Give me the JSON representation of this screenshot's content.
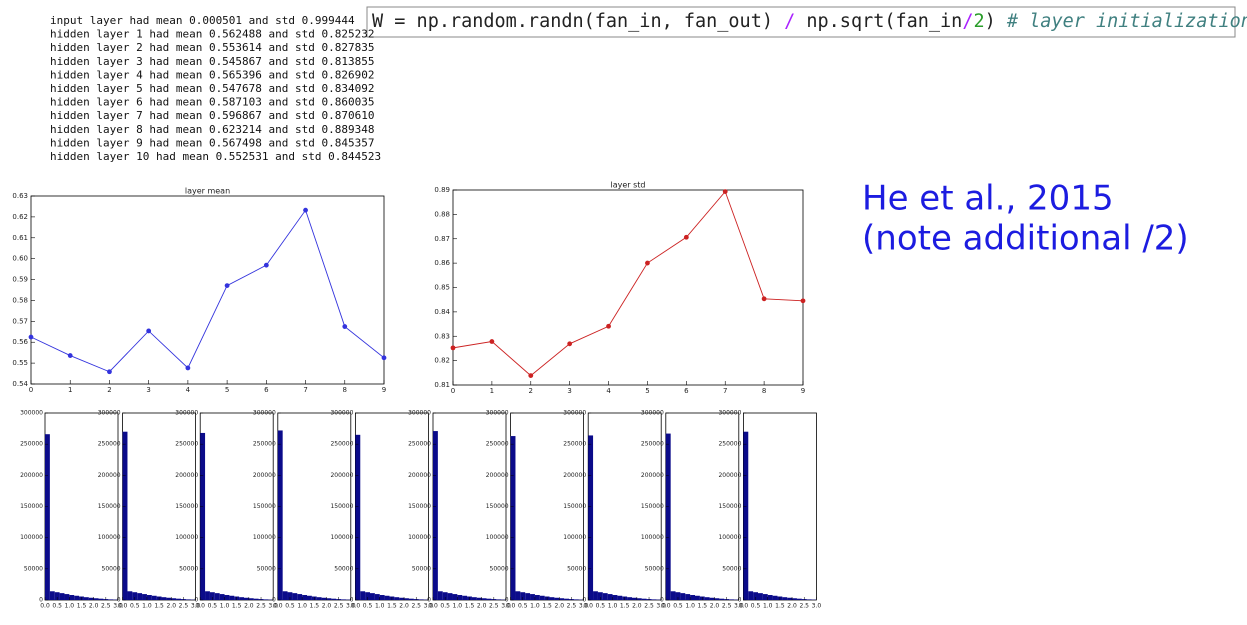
{
  "log_lines": [
    "input layer had mean 0.000501 and std 0.999444",
    "hidden layer 1 had mean 0.562488 and std 0.825232",
    "hidden layer 2 had mean 0.553614 and std 0.827835",
    "hidden layer 3 had mean 0.545867 and std 0.813855",
    "hidden layer 4 had mean 0.565396 and std 0.826902",
    "hidden layer 5 had mean 0.547678 and std 0.834092",
    "hidden layer 6 had mean 0.587103 and std 0.860035",
    "hidden layer 7 had mean 0.596867 and std 0.870610",
    "hidden layer 8 had mean 0.623214 and std 0.889348",
    "hidden layer 9 had mean 0.567498 and std 0.845357",
    "hidden layer 10 had mean 0.552531 and std 0.844523"
  ],
  "code_tokens": [
    {
      "text": "W = np.random.randn(fan_in, fan_out) ",
      "color": "#222222"
    },
    {
      "text": "/",
      "color": "#aa22ff"
    },
    {
      "text": " np.sqrt(fan_in",
      "color": "#222222"
    },
    {
      "text": "/",
      "color": "#aa22ff"
    },
    {
      "text": "2",
      "color": "#2a9d2a"
    },
    {
      "text": ") ",
      "color": "#222222"
    },
    {
      "text": "# layer initialization",
      "color": "#408080"
    }
  ],
  "annotation": [
    "He et al., 2015",
    "(note additional /2)"
  ],
  "chart_data": [
    {
      "type": "line",
      "title": "layer mean",
      "color": "#3333dd",
      "x": [
        0,
        1,
        2,
        3,
        4,
        5,
        6,
        7,
        8,
        9
      ],
      "values": [
        0.562488,
        0.553614,
        0.545867,
        0.565396,
        0.547678,
        0.587103,
        0.596867,
        0.623214,
        0.567498,
        0.552531
      ],
      "xlim": [
        0,
        9
      ],
      "xticks": [
        0,
        1,
        2,
        3,
        4,
        5,
        6,
        7,
        8,
        9
      ],
      "ylim": [
        0.54,
        0.63
      ],
      "yticks": [
        0.54,
        0.55,
        0.56,
        0.57,
        0.58,
        0.59,
        {
          "value": 0.6,
          "label": "0.60"
        },
        0.61,
        0.62,
        0.63
      ]
    },
    {
      "type": "line",
      "title": "layer std",
      "color": "#cc2222",
      "x": [
        0,
        1,
        2,
        3,
        4,
        5,
        6,
        7,
        8,
        9
      ],
      "values": [
        0.825232,
        0.827835,
        0.813855,
        0.826902,
        0.834092,
        0.860035,
        0.87061,
        0.889348,
        0.845357,
        0.844523
      ],
      "xlim": [
        0,
        9
      ],
      "xticks": [
        0,
        1,
        2,
        3,
        4,
        5,
        6,
        7,
        8,
        9
      ],
      "ylim": [
        0.81,
        0.89
      ],
      "yticks": [
        0.81,
        0.82,
        0.83,
        0.84,
        0.85,
        0.86,
        0.87,
        0.88,
        0.89
      ]
    },
    {
      "type": "histogram",
      "color": "#0b0b8a",
      "bins": [
        0,
        0.2,
        0.4,
        0.6,
        0.8,
        1,
        1.2,
        1.4,
        1.6,
        1.8,
        2,
        2.2,
        2.4,
        2.6,
        2.8,
        3
      ],
      "counts": [
        266000,
        14000,
        12500,
        11000,
        9500,
        8000,
        6800,
        5600,
        4500,
        3600,
        2800,
        2100,
        1500,
        1000,
        600
      ],
      "xlim": [
        0,
        3
      ],
      "xticks": [
        {
          "value": 0,
          "label": "0.0"
        },
        {
          "value": 0.5,
          "label": "0.5"
        },
        {
          "value": 1,
          "label": "1.0"
        },
        {
          "value": 1.5,
          "label": "1.5"
        },
        {
          "value": 2,
          "label": "2.0"
        },
        {
          "value": 2.5,
          "label": "2.5"
        },
        {
          "value": 3,
          "label": "3.0"
        }
      ],
      "ylim": [
        0,
        300000
      ],
      "yticks": [
        0,
        50000,
        100000,
        150000,
        200000,
        250000,
        300000
      ]
    },
    {
      "type": "histogram",
      "color": "#0b0b8a",
      "bins": [
        0,
        0.2,
        0.4,
        0.6,
        0.8,
        1,
        1.2,
        1.4,
        1.6,
        1.8,
        2,
        2.2,
        2.4,
        2.6,
        2.8,
        3
      ],
      "counts": [
        270000,
        14000,
        12500,
        11000,
        9500,
        8000,
        6800,
        5600,
        4500,
        3600,
        2800,
        2100,
        1500,
        1000,
        600
      ],
      "xlim": [
        0,
        3
      ],
      "xticks": [
        {
          "value": 0,
          "label": "0.0"
        },
        {
          "value": 0.5,
          "label": "0.5"
        },
        {
          "value": 1,
          "label": "1.0"
        },
        {
          "value": 1.5,
          "label": "1.5"
        },
        {
          "value": 2,
          "label": "2.0"
        },
        {
          "value": 2.5,
          "label": "2.5"
        },
        {
          "value": 3,
          "label": "3.0"
        }
      ],
      "ylim": [
        0,
        300000
      ],
      "yticks": [
        0,
        50000,
        100000,
        150000,
        200000,
        250000,
        300000
      ]
    },
    {
      "type": "histogram",
      "color": "#0b0b8a",
      "bins": [
        0,
        0.2,
        0.4,
        0.6,
        0.8,
        1,
        1.2,
        1.4,
        1.6,
        1.8,
        2,
        2.2,
        2.4,
        2.6,
        2.8,
        3
      ],
      "counts": [
        268000,
        14000,
        12500,
        11000,
        9500,
        8000,
        6800,
        5600,
        4500,
        3600,
        2800,
        2100,
        1500,
        1000,
        600
      ],
      "xlim": [
        0,
        3
      ],
      "xticks": [
        {
          "value": 0,
          "label": "0.0"
        },
        {
          "value": 0.5,
          "label": "0.5"
        },
        {
          "value": 1,
          "label": "1.0"
        },
        {
          "value": 1.5,
          "label": "1.5"
        },
        {
          "value": 2,
          "label": "2.0"
        },
        {
          "value": 2.5,
          "label": "2.5"
        },
        {
          "value": 3,
          "label": "3.0"
        }
      ],
      "ylim": [
        0,
        300000
      ],
      "yticks": [
        0,
        50000,
        100000,
        150000,
        200000,
        250000,
        300000
      ]
    },
    {
      "type": "histogram",
      "color": "#0b0b8a",
      "bins": [
        0,
        0.2,
        0.4,
        0.6,
        0.8,
        1,
        1.2,
        1.4,
        1.6,
        1.8,
        2,
        2.2,
        2.4,
        2.6,
        2.8,
        3
      ],
      "counts": [
        272000,
        14000,
        12500,
        11000,
        9500,
        8000,
        6800,
        5600,
        4500,
        3600,
        2800,
        2100,
        1500,
        1000,
        600
      ],
      "xlim": [
        0,
        3
      ],
      "xticks": [
        {
          "value": 0,
          "label": "0.0"
        },
        {
          "value": 0.5,
          "label": "0.5"
        },
        {
          "value": 1,
          "label": "1.0"
        },
        {
          "value": 1.5,
          "label": "1.5"
        },
        {
          "value": 2,
          "label": "2.0"
        },
        {
          "value": 2.5,
          "label": "2.5"
        },
        {
          "value": 3,
          "label": "3.0"
        }
      ],
      "ylim": [
        0,
        300000
      ],
      "yticks": [
        0,
        50000,
        100000,
        150000,
        200000,
        250000,
        300000
      ]
    },
    {
      "type": "histogram",
      "color": "#0b0b8a",
      "bins": [
        0,
        0.2,
        0.4,
        0.6,
        0.8,
        1,
        1.2,
        1.4,
        1.6,
        1.8,
        2,
        2.2,
        2.4,
        2.6,
        2.8,
        3
      ],
      "counts": [
        265000,
        14000,
        12500,
        11000,
        9500,
        8000,
        6800,
        5600,
        4500,
        3600,
        2800,
        2100,
        1500,
        1000,
        600
      ],
      "xlim": [
        0,
        3
      ],
      "xticks": [
        {
          "value": 0,
          "label": "0.0"
        },
        {
          "value": 0.5,
          "label": "0.5"
        },
        {
          "value": 1,
          "label": "1.0"
        },
        {
          "value": 1.5,
          "label": "1.5"
        },
        {
          "value": 2,
          "label": "2.0"
        },
        {
          "value": 2.5,
          "label": "2.5"
        },
        {
          "value": 3,
          "label": "3.0"
        }
      ],
      "ylim": [
        0,
        300000
      ],
      "yticks": [
        0,
        50000,
        100000,
        150000,
        200000,
        250000,
        300000
      ]
    },
    {
      "type": "histogram",
      "color": "#0b0b8a",
      "bins": [
        0,
        0.2,
        0.4,
        0.6,
        0.8,
        1,
        1.2,
        1.4,
        1.6,
        1.8,
        2,
        2.2,
        2.4,
        2.6,
        2.8,
        3
      ],
      "counts": [
        271000,
        14000,
        12500,
        11000,
        9500,
        8000,
        6800,
        5600,
        4500,
        3600,
        2800,
        2100,
        1500,
        1000,
        600
      ],
      "xlim": [
        0,
        3
      ],
      "xticks": [
        {
          "value": 0,
          "label": "0.0"
        },
        {
          "value": 0.5,
          "label": "0.5"
        },
        {
          "value": 1,
          "label": "1.0"
        },
        {
          "value": 1.5,
          "label": "1.5"
        },
        {
          "value": 2,
          "label": "2.0"
        },
        {
          "value": 2.5,
          "label": "2.5"
        },
        {
          "value": 3,
          "label": "3.0"
        }
      ],
      "ylim": [
        0,
        300000
      ],
      "yticks": [
        0,
        50000,
        100000,
        150000,
        200000,
        250000,
        300000
      ]
    },
    {
      "type": "histogram",
      "color": "#0b0b8a",
      "bins": [
        0,
        0.2,
        0.4,
        0.6,
        0.8,
        1,
        1.2,
        1.4,
        1.6,
        1.8,
        2,
        2.2,
        2.4,
        2.6,
        2.8,
        3
      ],
      "counts": [
        263000,
        14000,
        12500,
        11000,
        9500,
        8000,
        6800,
        5600,
        4500,
        3600,
        2800,
        2100,
        1500,
        1000,
        600
      ],
      "xlim": [
        0,
        3
      ],
      "xticks": [
        {
          "value": 0,
          "label": "0.0"
        },
        {
          "value": 0.5,
          "label": "0.5"
        },
        {
          "value": 1,
          "label": "1.0"
        },
        {
          "value": 1.5,
          "label": "1.5"
        },
        {
          "value": 2,
          "label": "2.0"
        },
        {
          "value": 2.5,
          "label": "2.5"
        },
        {
          "value": 3,
          "label": "3.0"
        }
      ],
      "ylim": [
        0,
        300000
      ],
      "yticks": [
        0,
        50000,
        100000,
        150000,
        200000,
        250000,
        300000
      ]
    },
    {
      "type": "histogram",
      "color": "#0b0b8a",
      "bins": [
        0,
        0.2,
        0.4,
        0.6,
        0.8,
        1,
        1.2,
        1.4,
        1.6,
        1.8,
        2,
        2.2,
        2.4,
        2.6,
        2.8,
        3
      ],
      "counts": [
        264000,
        14000,
        12500,
        11000,
        9500,
        8000,
        6800,
        5600,
        4500,
        3600,
        2800,
        2100,
        1500,
        1000,
        600
      ],
      "xlim": [
        0,
        3
      ],
      "xticks": [
        {
          "value": 0,
          "label": "0.0"
        },
        {
          "value": 0.5,
          "label": "0.5"
        },
        {
          "value": 1,
          "label": "1.0"
        },
        {
          "value": 1.5,
          "label": "1.5"
        },
        {
          "value": 2,
          "label": "2.0"
        },
        {
          "value": 2.5,
          "label": "2.5"
        },
        {
          "value": 3,
          "label": "3.0"
        }
      ],
      "ylim": [
        0,
        300000
      ],
      "yticks": [
        0,
        50000,
        100000,
        150000,
        200000,
        250000,
        300000
      ]
    },
    {
      "type": "histogram",
      "color": "#0b0b8a",
      "bins": [
        0,
        0.2,
        0.4,
        0.6,
        0.8,
        1,
        1.2,
        1.4,
        1.6,
        1.8,
        2,
        2.2,
        2.4,
        2.6,
        2.8,
        3
      ],
      "counts": [
        267000,
        14000,
        12500,
        11000,
        9500,
        8000,
        6800,
        5600,
        4500,
        3600,
        2800,
        2100,
        1500,
        1000,
        600
      ],
      "xlim": [
        0,
        3
      ],
      "xticks": [
        {
          "value": 0,
          "label": "0.0"
        },
        {
          "value": 0.5,
          "label": "0.5"
        },
        {
          "value": 1,
          "label": "1.0"
        },
        {
          "value": 1.5,
          "label": "1.5"
        },
        {
          "value": 2,
          "label": "2.0"
        },
        {
          "value": 2.5,
          "label": "2.5"
        },
        {
          "value": 3,
          "label": "3.0"
        }
      ],
      "ylim": [
        0,
        300000
      ],
      "yticks": [
        0,
        50000,
        100000,
        150000,
        200000,
        250000,
        300000
      ]
    },
    {
      "type": "histogram",
      "color": "#0b0b8a",
      "bins": [
        0,
        0.2,
        0.4,
        0.6,
        0.8,
        1,
        1.2,
        1.4,
        1.6,
        1.8,
        2,
        2.2,
        2.4,
        2.6,
        2.8,
        3
      ],
      "counts": [
        270000,
        14000,
        12500,
        11000,
        9500,
        8000,
        6800,
        5600,
        4500,
        3600,
        2800,
        2100,
        1500,
        1000,
        600
      ],
      "xlim": [
        0,
        3
      ],
      "xticks": [
        {
          "value": 0,
          "label": "0.0"
        },
        {
          "value": 0.5,
          "label": "0.5"
        },
        {
          "value": 1,
          "label": "1.0"
        },
        {
          "value": 1.5,
          "label": "1.5"
        },
        {
          "value": 2,
          "label": "2.0"
        },
        {
          "value": 2.5,
          "label": "2.5"
        },
        {
          "value": 3,
          "label": "3.0"
        }
      ],
      "ylim": [
        0,
        300000
      ],
      "yticks": [
        0,
        50000,
        100000,
        150000,
        200000,
        250000,
        300000
      ]
    }
  ]
}
